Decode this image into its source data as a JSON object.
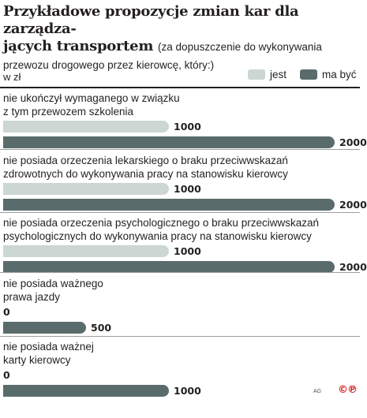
{
  "title": "Przykładowe propozycje zmian kar dla zarządza-\njących transportem",
  "subtitle": "(za dopuszczenie do wykonywania przewozu drogowego przez kierowcę, który:)",
  "unit": "w zł",
  "legend": {
    "current": "jest",
    "proposed": "ma być"
  },
  "colors": {
    "current": "#ccd6d2",
    "proposed": "#5a6b6b"
  },
  "credit": "AG",
  "logo": "©℗",
  "chart_data": {
    "type": "bar",
    "orientation": "horizontal",
    "categories": [
      "nie ukończył wymaganego w związku\nz tym przewozem szkolenia",
      "nie posiada orzeczenia lekarskiego o braku przeciwwskazań\nzdrowotnych do wykonywania pracy na stanowisku kierowcy",
      "nie posiada orzeczenia psychologicznego o braku przeciwwskazań\npsychologicznych do wykonywania pracy na stanowisku kierowcy",
      "nie posiada ważnego\nprawa jazdy",
      "nie posiada ważnej\nkarty kierowcy"
    ],
    "series": [
      {
        "name": "jest",
        "values": [
          1000,
          1000,
          1000,
          0,
          0
        ]
      },
      {
        "name": "ma być",
        "values": [
          2000,
          2000,
          2000,
          500,
          1000
        ]
      }
    ],
    "value_labels": [
      [
        "1000",
        "1000",
        "1000",
        "0",
        "0"
      ],
      [
        "2000",
        "2000",
        "2000",
        "500",
        "1000"
      ]
    ],
    "xlim": [
      0,
      2000
    ],
    "grid": false,
    "legend_position": "top-right"
  }
}
